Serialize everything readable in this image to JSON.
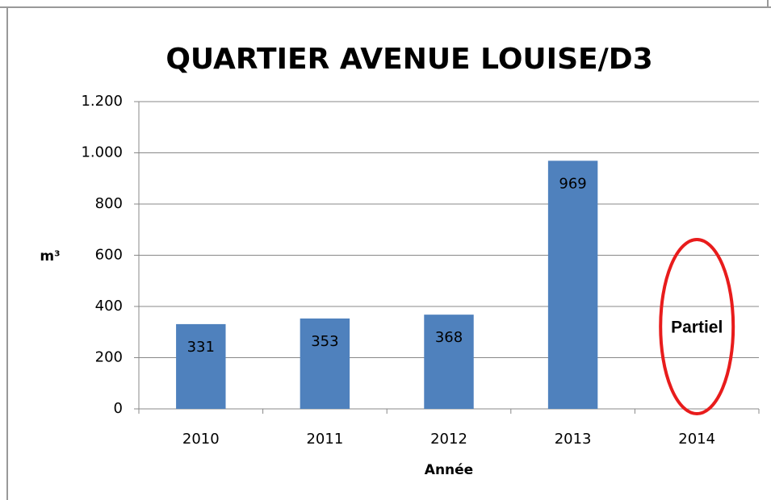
{
  "chart_data": {
    "type": "bar",
    "title": "QUARTIER AVENUE LOUISE/D3",
    "x_label": "Année",
    "y_label": "m³",
    "categories": [
      "2010",
      "2011",
      "2012",
      "2013",
      "2014"
    ],
    "values": [
      331,
      353,
      368,
      969,
      null
    ],
    "color": "#4f81bd",
    "ylim": [
      0,
      1200
    ],
    "yticks": [
      0,
      200,
      400,
      600,
      800,
      {
        "value": 1000,
        "label": "1.000"
      },
      {
        "value": 1200,
        "label": "1.200"
      }
    ],
    "grid": true,
    "annotation": {
      "text": "Partiel",
      "category": "2014",
      "color": "#e81c1c"
    }
  }
}
